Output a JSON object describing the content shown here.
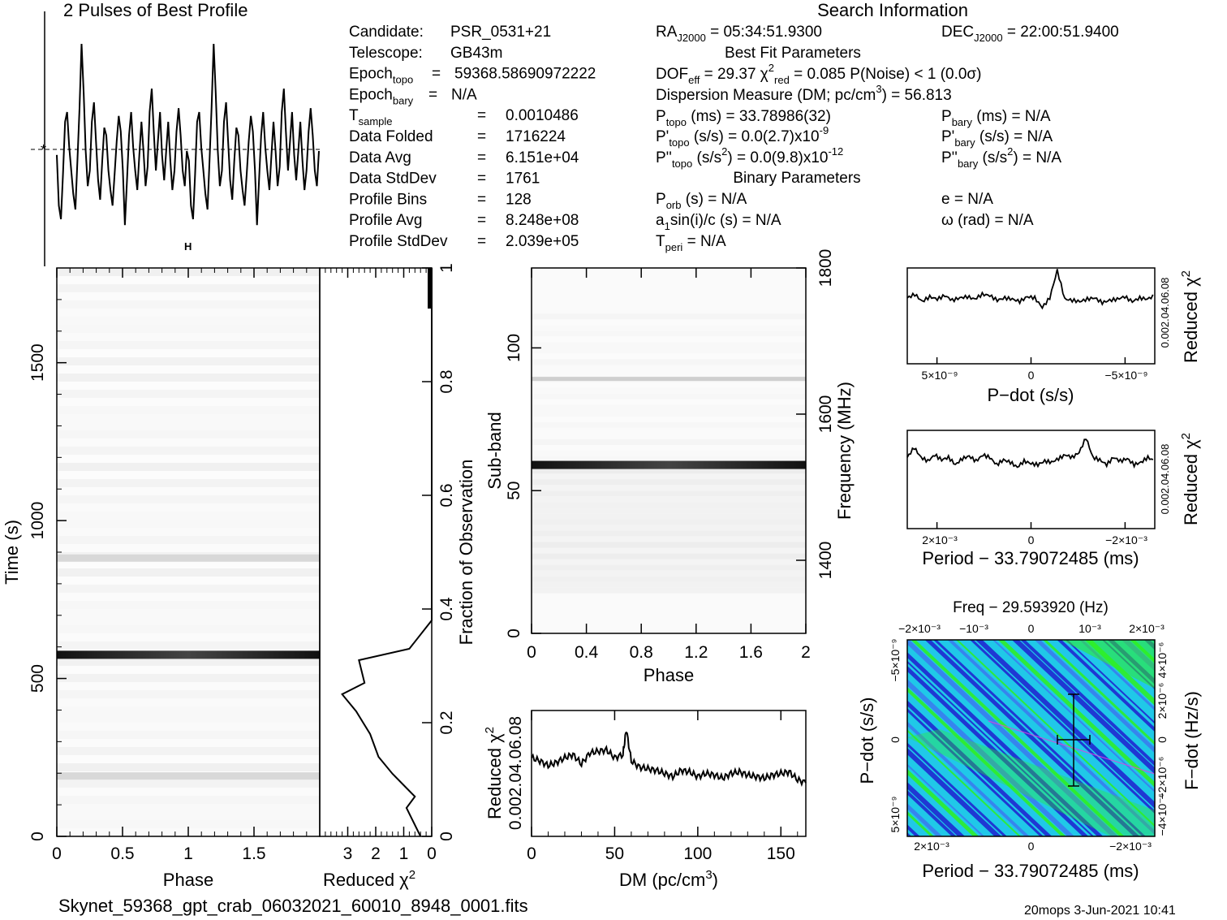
{
  "header": {
    "profile_title": "2 Pulses of Best Profile",
    "search_title": "Search Information",
    "best_fit_title": "Best Fit Parameters",
    "binary_title": "Binary Parameters"
  },
  "info_left": [
    {
      "key": "Candidate:",
      "sub": "",
      "sup": "",
      "eq": "",
      "val": "PSR_0531+21"
    },
    {
      "key": "Telescope:",
      "sub": "",
      "sup": "",
      "eq": "",
      "val": "GB43m"
    },
    {
      "key": "Epoch",
      "sub": "topo",
      "sup": "",
      "eq": "=",
      "val": "59368.58690972222"
    },
    {
      "key": "Epoch",
      "sub": "bary",
      "sup": "",
      "eq": "=",
      "val": "N/A"
    },
    {
      "key": "T",
      "sub": "sample",
      "sup": "",
      "eq": "=",
      "val": "0.0010486"
    },
    {
      "key": "Data Folded",
      "sub": "",
      "sup": "",
      "eq": "=",
      "val": "1716224"
    },
    {
      "key": "Data Avg",
      "sub": "",
      "sup": "",
      "eq": "=",
      "val": "6.151e+04"
    },
    {
      "key": "Data StdDev",
      "sub": "",
      "sup": "",
      "eq": "=",
      "val": "1761"
    },
    {
      "key": "Profile Bins",
      "sub": "",
      "sup": "",
      "eq": "=",
      "val": "128"
    },
    {
      "key": "Profile Avg",
      "sub": "",
      "sup": "",
      "eq": "=",
      "val": "8.248e+08"
    },
    {
      "key": "Profile StdDev",
      "sub": "",
      "sup": "",
      "eq": "=",
      "val": "2.039e+05"
    }
  ],
  "info_mid": {
    "ra": {
      "a": "RA",
      "sub": "J2000",
      "b": " = 05:34:51.9300"
    },
    "dec": {
      "a": "DEC",
      "sub": "J2000",
      "b": " = 22:00:51.9400"
    },
    "dof": {
      "a": "DOF",
      "sub": "eff",
      "b": " = 29.37  χ",
      "sup": "2",
      "sub2": "red",
      "c": " = 0.085  P(Noise) < 1   (0.0σ)"
    },
    "dm": {
      "a": "Dispersion Measure (DM; pc/cm",
      "sup": "3",
      "b": ") = 56.813"
    },
    "ptopo": {
      "a": "P",
      "sub": "topo",
      "b": " (ms) =  33.78986(32)"
    },
    "pbary": {
      "a": "P",
      "sub": "bary",
      "b": " (ms) = N/A"
    },
    "pdtopo": {
      "a": "P'",
      "sub": "topo",
      "b": " (s/s) = 0.0(2.7)x10",
      "sup": "-9"
    },
    "pdbary": {
      "a": "P'",
      "sub": "bary",
      "b": " (s/s) = N/A"
    },
    "pddtopo": {
      "a": "P''",
      "sub": "topo",
      "b": " (s/s",
      "sup": "2",
      "c": ") = 0.0(9.8)x10",
      "sup2": "-12"
    },
    "pddbary": {
      "a": "P''",
      "sub": "bary",
      "b": " (s/s",
      "sup": "2",
      "c": ") = N/A"
    },
    "porb": {
      "a": "P",
      "sub": "orb",
      "b": " (s) = N/A"
    },
    "ecc": "e = N/A",
    "asini": {
      "a": "a",
      "sub": "1",
      "b": "sin(i)/c (s) = N/A"
    },
    "omega": "ω (rad) = N/A",
    "tperi": {
      "a": "T",
      "sub": "peri",
      "b": " = N/A"
    }
  },
  "footer": {
    "filename": "Skynet_59368_gpt_crab_06032021_60010_8948_0001.fits",
    "user_date": "20mops  3-Jun-2021 10:41"
  },
  "colors": {
    "pd_map_low": "#1f1fd0",
    "pd_map_mid": "#20c8e8",
    "pd_map_high": "#30f020",
    "pd_map_peak": "#e040e0"
  },
  "chart_data": [
    {
      "id": "profile",
      "type": "line",
      "title": "2 Pulses of Best Profile",
      "xlim": [
        0,
        2
      ],
      "values": [
        0.38,
        0.12,
        0.05,
        0.28,
        0.55,
        0.6,
        0.42,
        0.3,
        0.18,
        0.1,
        0.35,
        0.62,
        0.95,
        0.7,
        0.4,
        0.22,
        0.3,
        0.55,
        0.65,
        0.45,
        0.25,
        0.15,
        0.35,
        0.52,
        0.48,
        0.3,
        0.2,
        0.12,
        0.28,
        0.45,
        0.58,
        0.5,
        0.3,
        0.02,
        0.25,
        0.48,
        0.6,
        0.42,
        0.3,
        0.2,
        0.38,
        0.55,
        0.4,
        0.22,
        0.32,
        0.6,
        0.72,
        0.5,
        0.3,
        0.45,
        0.6,
        0.38,
        0.25,
        0.4,
        0.55,
        0.35,
        0.2,
        0.3,
        0.5,
        0.62,
        0.48,
        0.3,
        0.22,
        0.4,
        0.35,
        0.12,
        0.05,
        0.28,
        0.55,
        0.6,
        0.42,
        0.3,
        0.18,
        0.1,
        0.35,
        0.62,
        0.95,
        0.7,
        0.4,
        0.22,
        0.3,
        0.55,
        0.65,
        0.45,
        0.25,
        0.15,
        0.35,
        0.52,
        0.48,
        0.3,
        0.2,
        0.12,
        0.28,
        0.45,
        0.58,
        0.5,
        0.3,
        0.02,
        0.25,
        0.48,
        0.6,
        0.42,
        0.3,
        0.2,
        0.38,
        0.55,
        0.4,
        0.22,
        0.32,
        0.6,
        0.72,
        0.5,
        0.3,
        0.45,
        0.6,
        0.38,
        0.25,
        0.4,
        0.55,
        0.35,
        0.2,
        0.3,
        0.5,
        0.62,
        0.48,
        0.3,
        0.22,
        0.4
      ]
    },
    {
      "id": "time_phase",
      "type": "heatmap",
      "xlabel": "Phase",
      "ylabel": "Time (s)",
      "xlim": [
        0,
        2
      ],
      "ylim": [
        0,
        1800
      ],
      "x_ticks": [
        "0",
        "0.5",
        "1",
        "1.5"
      ],
      "y_ticks": [
        "0",
        "500",
        "1000",
        "1500"
      ],
      "bright_rows_time_s": [
        575
      ],
      "faint_rows_time_s": [
        880,
        190
      ]
    },
    {
      "id": "time_chi2",
      "type": "line",
      "xlabel": "Reduced χ",
      "xlabel_sup": "2",
      "ylabel": "Fraction of Observation",
      "x_ticks": [
        "3",
        "2",
        "1",
        "0"
      ],
      "y_ticks": [
        "0",
        "0.2",
        "0.4",
        "0.6",
        "0.8",
        "1"
      ],
      "xlim": [
        4,
        0
      ],
      "fraction": [
        0.0,
        0.02,
        0.05,
        0.07,
        0.09,
        0.11,
        0.14,
        0.18,
        0.22,
        0.25,
        0.27,
        0.31,
        0.33,
        0.38,
        1.0
      ],
      "chi2": [
        0.4,
        0.6,
        0.9,
        0.6,
        1.0,
        1.4,
        1.9,
        2.2,
        2.7,
        3.2,
        2.4,
        2.6,
        0.8,
        0.0,
        0.0
      ]
    },
    {
      "id": "subband_phase",
      "type": "heatmap",
      "xlabel": "Phase",
      "ylabel": "Sub-band",
      "ylabel_right": "Frequency (MHz)",
      "xlim": [
        0,
        2
      ],
      "ylim": [
        0,
        128
      ],
      "x_ticks": [
        "0",
        "0.4",
        "0.8",
        "1.2",
        "1.6",
        "2"
      ],
      "y_ticks": [
        "0",
        "50",
        "100"
      ],
      "y_ticks_right": [
        "1400",
        "1600",
        "1800"
      ],
      "bright_subbands": [
        59
      ],
      "faint_subbands": [
        89
      ]
    },
    {
      "id": "dm_curve",
      "type": "line",
      "xlabel": "DM (pc/cm",
      "xlabel_sup": "3",
      "ylabel": "Reduced χ",
      "ylabel_sup": "2",
      "xlim": [
        0,
        165
      ],
      "x_ticks": [
        "0",
        "50",
        "100",
        "150"
      ],
      "y_ticks_text": "0.002.04.06.08",
      "x": [
        0,
        5,
        10,
        15,
        20,
        25,
        30,
        35,
        40,
        45,
        50,
        55,
        57,
        60,
        65,
        70,
        75,
        80,
        85,
        90,
        95,
        100,
        105,
        110,
        115,
        120,
        125,
        130,
        135,
        140,
        145,
        150,
        155,
        160,
        165
      ],
      "values": [
        0.05,
        0.048,
        0.045,
        0.047,
        0.05,
        0.052,
        0.046,
        0.053,
        0.054,
        0.055,
        0.05,
        0.052,
        0.068,
        0.048,
        0.044,
        0.043,
        0.042,
        0.04,
        0.038,
        0.042,
        0.041,
        0.038,
        0.04,
        0.039,
        0.037,
        0.04,
        0.041,
        0.039,
        0.038,
        0.037,
        0.039,
        0.04,
        0.041,
        0.036,
        0.034
      ]
    },
    {
      "id": "pdot_curve",
      "type": "line",
      "xlabel": "P−dot (s/s)",
      "ylabel": "Reduced χ",
      "ylabel_sup": "2",
      "x_ticks": [
        "5×10⁻⁹",
        "0",
        "−5×10⁻⁹"
      ],
      "y_ticks_text": "0.002.04.06.08",
      "values": [
        0.055,
        0.058,
        0.052,
        0.056,
        0.054,
        0.057,
        0.053,
        0.055,
        0.056,
        0.054,
        0.058,
        0.057,
        0.053,
        0.055,
        0.054,
        0.052,
        0.056,
        0.055,
        0.047,
        0.055,
        0.078,
        0.054,
        0.053,
        0.052,
        0.054,
        0.055,
        0.051,
        0.053,
        0.054,
        0.056,
        0.052,
        0.055,
        0.054,
        0.057
      ]
    },
    {
      "id": "period_curve",
      "type": "line",
      "xlabel": "Period − 33.79072485 (ms)",
      "ylabel": "Reduced χ",
      "ylabel_sup": "2",
      "x_ticks": [
        "2×10⁻³",
        "0",
        "−2×10⁻³"
      ],
      "y_ticks_text": "0.002.04.06.08",
      "values": [
        0.058,
        0.066,
        0.058,
        0.055,
        0.06,
        0.056,
        0.058,
        0.052,
        0.057,
        0.059,
        0.055,
        0.06,
        0.058,
        0.052,
        0.056,
        0.054,
        0.05,
        0.055,
        0.053,
        0.052,
        0.055,
        0.054,
        0.057,
        0.06,
        0.058,
        0.062,
        0.074,
        0.058,
        0.056,
        0.052,
        0.058,
        0.055,
        0.057,
        0.052,
        0.054,
        0.058,
        0.055
      ]
    },
    {
      "id": "pp_dot",
      "type": "heatmap",
      "title": "Freq − 29.593920 (Hz)",
      "xlabel": "Period − 33.79072485 (ms)",
      "ylabel": "P−dot (s/s)",
      "ylabel_right": "F−dot (Hz/s)",
      "x_ticks_bottom": [
        "2×10⁻³",
        "0",
        "−2×10⁻³"
      ],
      "x_ticks_top": [
        "−2×10⁻³",
        "−10⁻³",
        "0",
        "10⁻³",
        "2×10⁻³"
      ],
      "y_ticks_left": [
        "5×10⁻⁹",
        "0",
        "−5×10⁻⁹"
      ],
      "y_ticks_right": [
        "−4×10⁻⁶",
        "−2×10⁻⁶",
        "0",
        "2×10⁻⁶",
        "4×10⁻⁶"
      ],
      "best_fit_marker_period_ms": -0.00067,
      "best_fit_marker_pdot": 0.0
    }
  ]
}
